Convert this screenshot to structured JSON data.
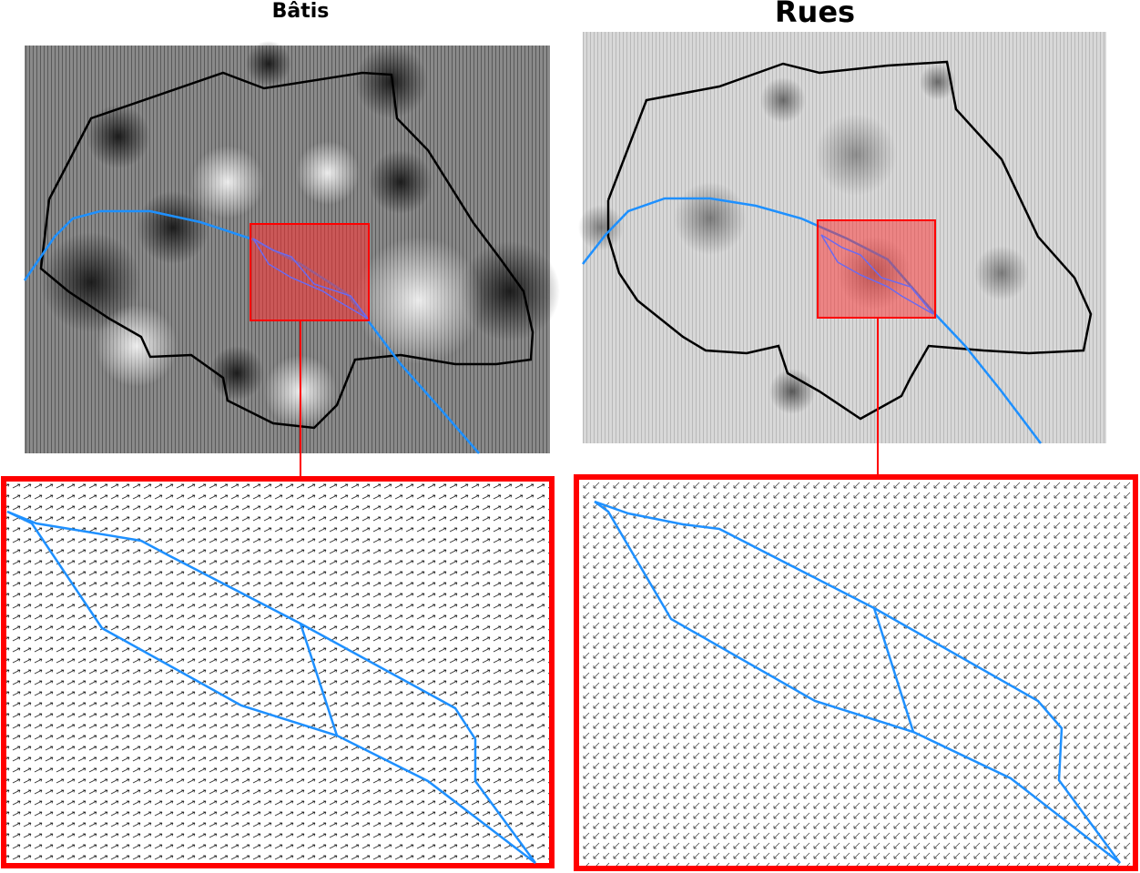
{
  "panels": {
    "left": {
      "title": "Bâtis"
    },
    "right": {
      "title": "Rues"
    }
  },
  "colors": {
    "river": "#1e90ff",
    "boundary": "#000000",
    "zoom_frame": "#ff0000",
    "zoom_fill": "#ff3030"
  }
}
